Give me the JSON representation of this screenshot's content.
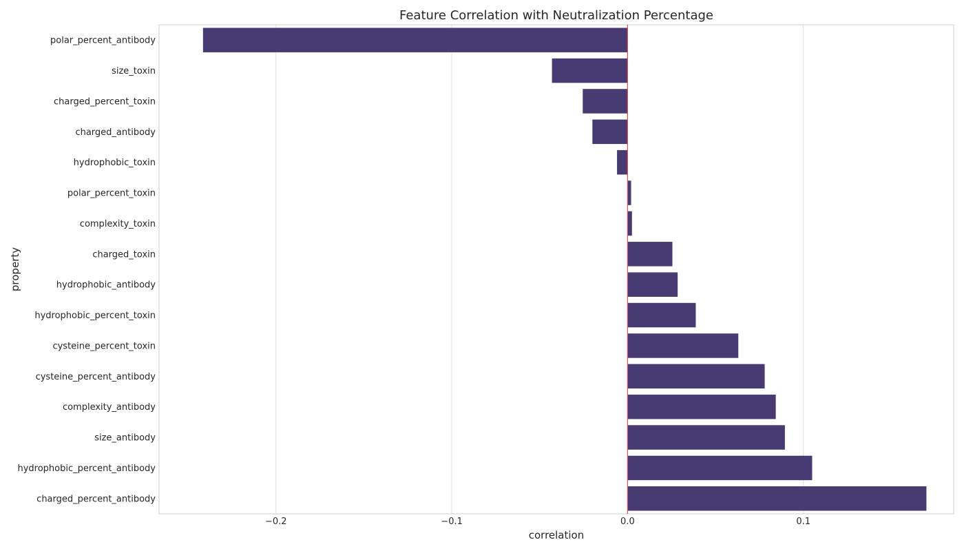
{
  "chart_data": {
    "type": "bar",
    "orientation": "horizontal",
    "title": "Feature Correlation with Neutralization Percentage",
    "xlabel": "correlation",
    "ylabel": "property",
    "xlim": [
      -0.2665,
      0.1855
    ],
    "xticks": [
      -0.2,
      -0.1,
      0.0,
      0.1
    ],
    "xtick_labels": [
      "−0.2",
      "−0.1",
      "0.0",
      "0.1"
    ],
    "grid": true,
    "reference_line": {
      "x": 0.0,
      "color": "#d9534f"
    },
    "bar_color": "#483a73",
    "categories": [
      "polar_percent_antibody",
      "size_toxin",
      "charged_percent_toxin",
      "charged_antibody",
      "hydrophobic_toxin",
      "polar_percent_toxin",
      "complexity_toxin",
      "charged_toxin",
      "hydrophobic_antibody",
      "hydrophobic_percent_toxin",
      "cysteine_percent_toxin",
      "cysteine_percent_antibody",
      "complexity_antibody",
      "size_antibody",
      "hydrophobic_percent_antibody",
      "charged_percent_antibody"
    ],
    "values": [
      -0.2415,
      -0.043,
      -0.0255,
      -0.02,
      -0.006,
      0.002,
      0.0025,
      0.0255,
      0.0285,
      0.0388,
      0.063,
      0.078,
      0.0843,
      0.0895,
      0.105,
      0.17
    ]
  }
}
